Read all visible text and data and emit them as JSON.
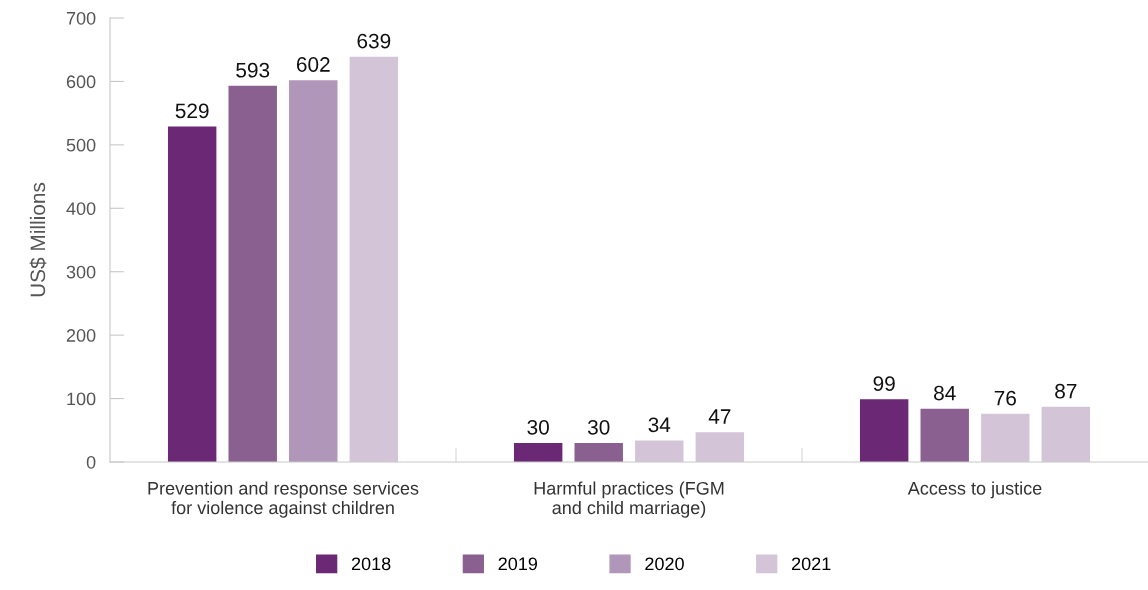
{
  "chart_data": {
    "type": "bar",
    "ylabel": "US$ Millions",
    "categories": [
      "Prevention and response services\nfor violence against children",
      "Harmful practices (FGM\nand child marriage)",
      "Access to justice"
    ],
    "series": [
      {
        "name": "2018",
        "color": "#6b2874",
        "values": [
          529,
          30,
          99
        ]
      },
      {
        "name": "2019",
        "color": "#8a6090",
        "values": [
          593,
          30,
          84
        ]
      },
      {
        "name": "2020",
        "color": "#b096b8",
        "colors": [
          "#b096b8",
          "#d4c4d8",
          "#d4c4d8"
        ],
        "values": [
          602,
          34,
          76
        ]
      },
      {
        "name": "2021",
        "color": "#d4c4d8",
        "values": [
          639,
          47,
          87
        ]
      }
    ],
    "ylim": [
      0,
      700
    ],
    "yticks": [
      0,
      100,
      200,
      300,
      400,
      500,
      600,
      700
    ],
    "data_labels": true,
    "grid": false,
    "legend": "bottom"
  }
}
